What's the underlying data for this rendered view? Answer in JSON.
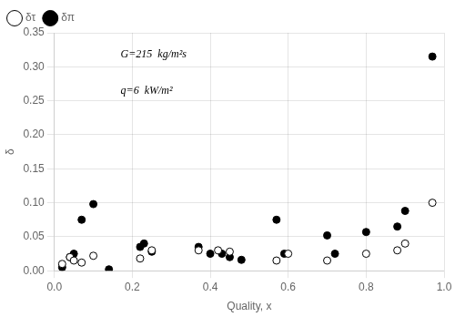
{
  "chart_data": {
    "type": "scatter",
    "xlabel": "Quality, x",
    "ylabel": "δ",
    "annotations": [
      "G=215  kg/m²s",
      "q=6  kW/m²"
    ],
    "series": [
      {
        "name": "δτ",
        "color": "#000000",
        "marker": "circle_open",
        "x": [
          0.02,
          0.04,
          0.05,
          0.07,
          0.1,
          0.22,
          0.25,
          0.37,
          0.42,
          0.45,
          0.57,
          0.6,
          0.7,
          0.8,
          0.88,
          0.9,
          0.97
        ],
        "values": [
          0.01,
          0.02,
          0.015,
          0.012,
          0.022,
          0.018,
          0.03,
          0.03,
          0.03,
          0.028,
          0.015,
          0.025,
          0.015,
          0.025,
          0.03,
          0.04,
          0.1
        ]
      },
      {
        "name": "δπ",
        "color": "#000000",
        "marker": "circle_filled",
        "x": [
          0.02,
          0.04,
          0.05,
          0.07,
          0.1,
          0.14,
          0.22,
          0.23,
          0.25,
          0.37,
          0.4,
          0.43,
          0.45,
          0.48,
          0.57,
          0.59,
          0.7,
          0.72,
          0.8,
          0.88,
          0.9,
          0.97
        ],
        "values": [
          0.005,
          0.02,
          0.025,
          0.075,
          0.098,
          0.002,
          0.035,
          0.04,
          0.028,
          0.035,
          0.025,
          0.025,
          0.02,
          0.016,
          0.075,
          0.025,
          0.052,
          0.025,
          0.057,
          0.065,
          0.088,
          0.315
        ]
      }
    ],
    "xlim": [
      0.0,
      1.0
    ],
    "ylim": [
      0.0,
      0.35
    ],
    "xticks": [
      {
        "value": 0.0,
        "label": "0.0"
      },
      0.2,
      0.4,
      0.6,
      0.8,
      {
        "value": 1.0,
        "label": "1.0"
      }
    ],
    "yticks": [
      {
        "value": 0.0,
        "label": "0.00"
      },
      0.05,
      {
        "value": 0.1,
        "label": "0.10"
      },
      0.15,
      {
        "value": 0.2,
        "label": "0.20"
      },
      0.25,
      {
        "value": 0.3,
        "label": "0.30"
      },
      0.35
    ],
    "grid": true,
    "legend": "upper left"
  }
}
